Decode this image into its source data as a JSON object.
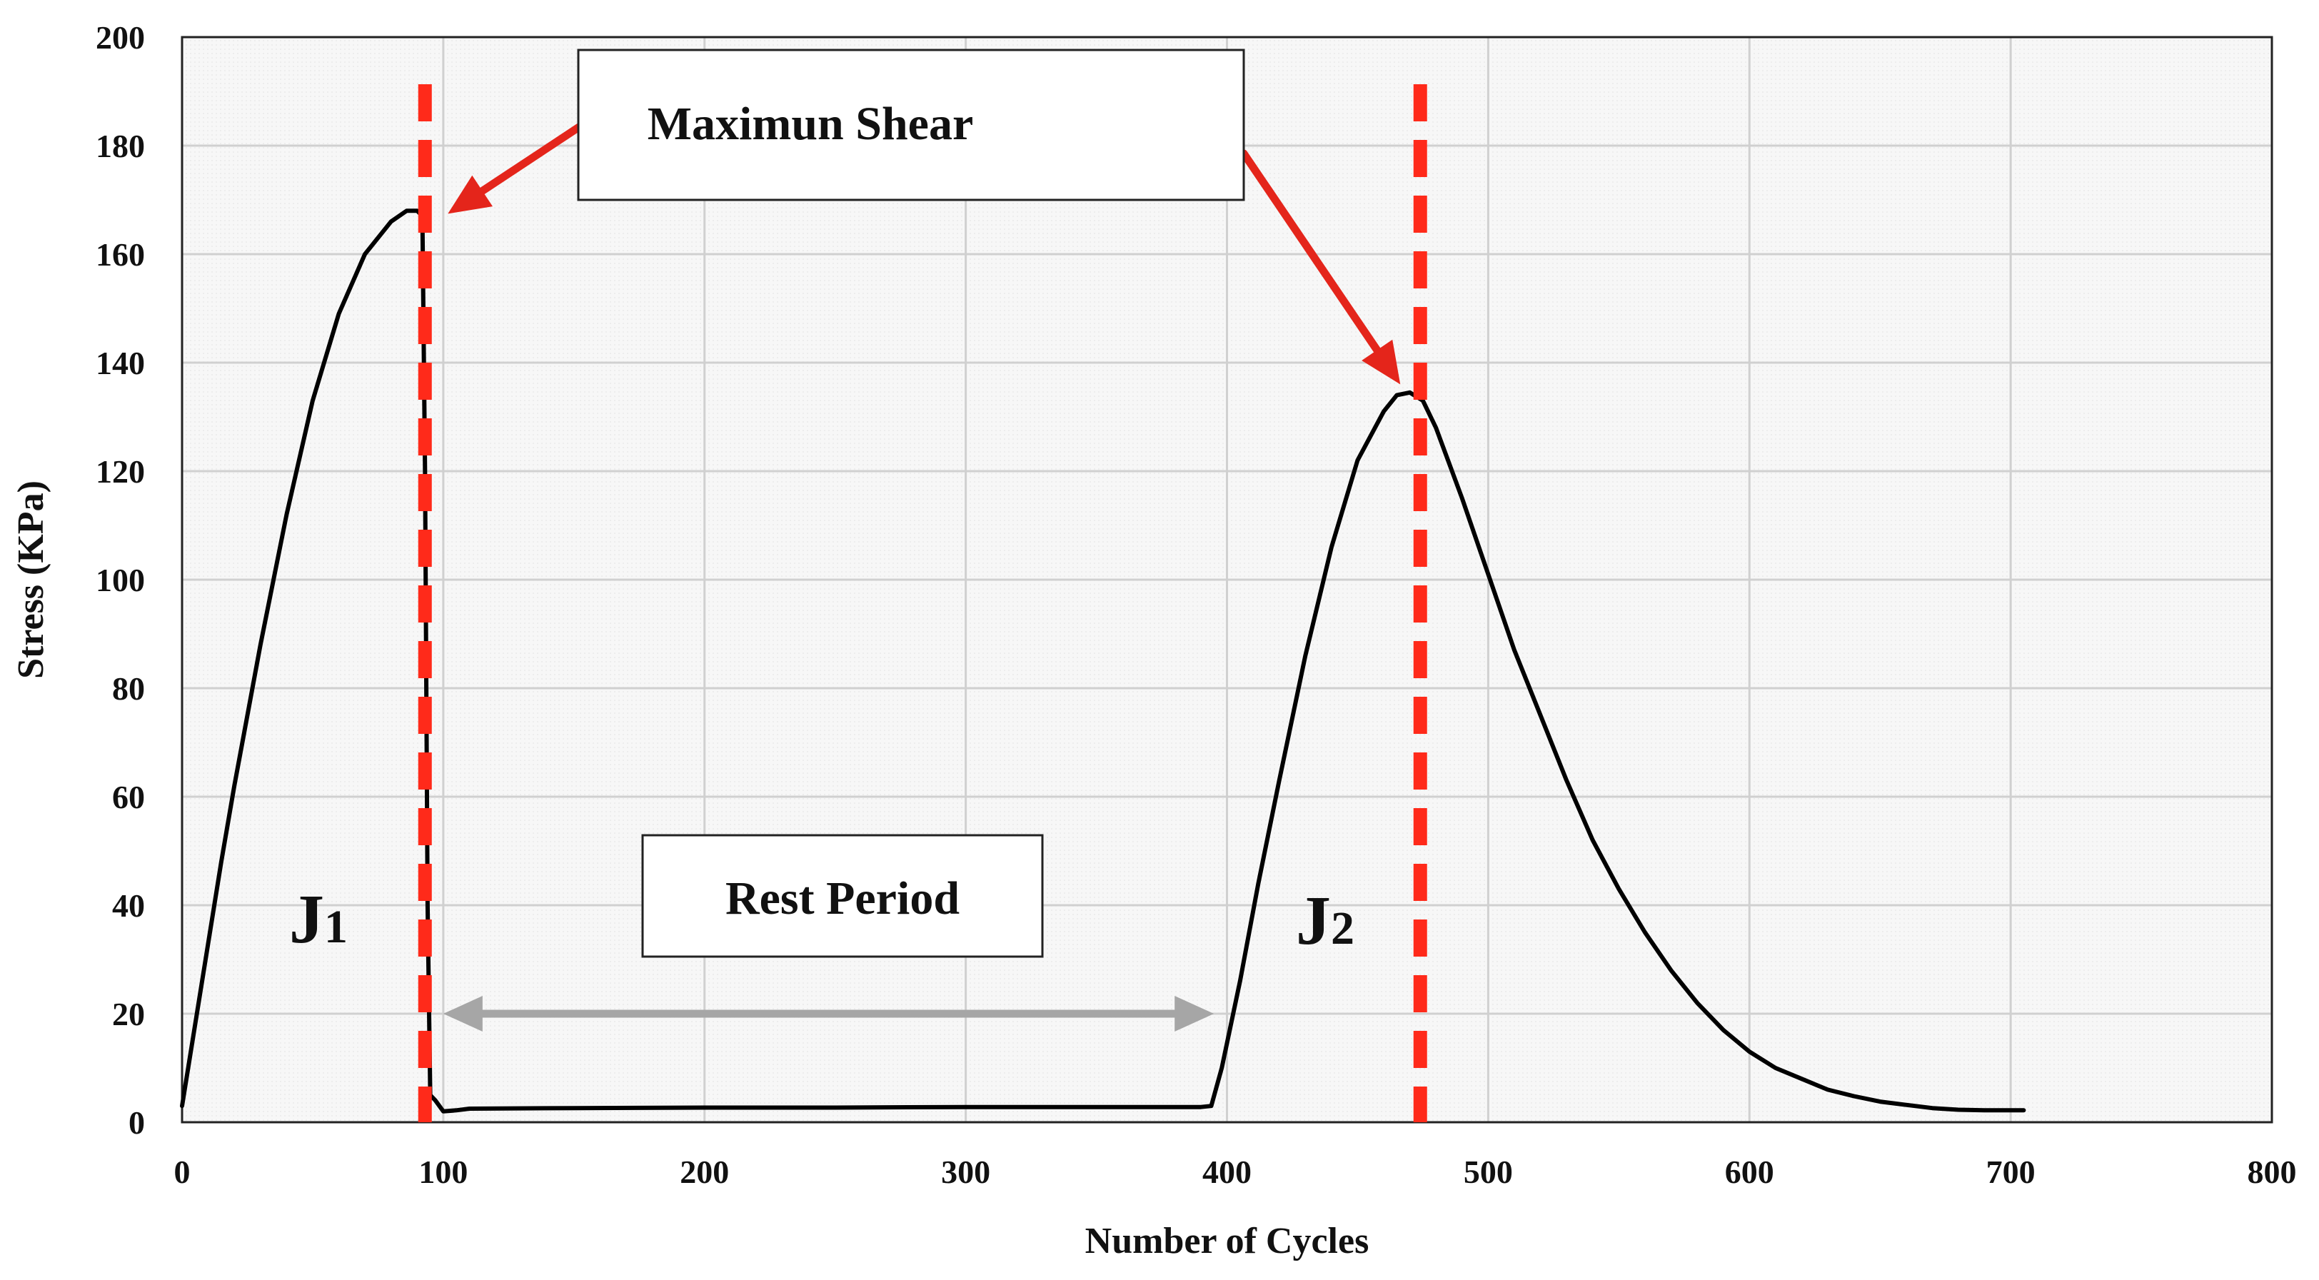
{
  "chart_data": {
    "type": "line",
    "title": "",
    "xlabel": "Number of Cycles",
    "ylabel": "Stress (KPa)",
    "xlim": [
      0,
      800
    ],
    "ylim": [
      0,
      200
    ],
    "xticks": [
      0,
      100,
      200,
      300,
      400,
      500,
      600,
      700,
      800
    ],
    "yticks": [
      0,
      20,
      40,
      60,
      80,
      100,
      120,
      140,
      160,
      180,
      200
    ],
    "grid": true,
    "series": [
      {
        "name": "Stress",
        "color": "#000000",
        "points": [
          [
            0,
            3
          ],
          [
            5,
            18
          ],
          [
            10,
            33
          ],
          [
            15,
            48
          ],
          [
            20,
            62
          ],
          [
            30,
            88
          ],
          [
            40,
            112
          ],
          [
            50,
            133
          ],
          [
            60,
            149
          ],
          [
            70,
            160
          ],
          [
            80,
            166
          ],
          [
            86,
            168
          ],
          [
            90,
            168
          ],
          [
            92,
            167
          ],
          [
            93,
            120
          ],
          [
            94,
            40
          ],
          [
            95,
            5
          ],
          [
            97,
            4
          ],
          [
            100,
            2
          ],
          [
            105,
            2.2
          ],
          [
            110,
            2.5
          ],
          [
            150,
            2.6
          ],
          [
            200,
            2.7
          ],
          [
            250,
            2.7
          ],
          [
            300,
            2.8
          ],
          [
            350,
            2.8
          ],
          [
            390,
            2.8
          ],
          [
            394,
            3
          ],
          [
            398,
            10
          ],
          [
            405,
            26
          ],
          [
            412,
            44
          ],
          [
            420,
            63
          ],
          [
            430,
            86
          ],
          [
            440,
            106
          ],
          [
            450,
            122
          ],
          [
            460,
            131
          ],
          [
            465,
            134
          ],
          [
            470,
            134.5
          ],
          [
            475,
            133
          ],
          [
            480,
            128
          ],
          [
            490,
            115
          ],
          [
            500,
            101
          ],
          [
            510,
            87
          ],
          [
            520,
            75
          ],
          [
            530,
            63
          ],
          [
            540,
            52
          ],
          [
            550,
            43
          ],
          [
            560,
            35
          ],
          [
            570,
            28
          ],
          [
            580,
            22
          ],
          [
            590,
            17
          ],
          [
            600,
            13
          ],
          [
            610,
            10
          ],
          [
            620,
            8
          ],
          [
            630,
            6
          ],
          [
            640,
            4.8
          ],
          [
            650,
            3.8
          ],
          [
            660,
            3.2
          ],
          [
            670,
            2.6
          ],
          [
            680,
            2.3
          ],
          [
            690,
            2.2
          ],
          [
            700,
            2.2
          ],
          [
            705,
            2.2
          ]
        ]
      }
    ],
    "reference_lines": [
      {
        "name": "J1 maximum shear",
        "x": 93,
        "color": "#ff2a1a",
        "style": "dashed"
      },
      {
        "name": "J2 maximum shear",
        "x": 474,
        "color": "#ff2a1a",
        "style": "dashed"
      }
    ],
    "annotations": {
      "max_shear_label": "Maximun Shear",
      "rest_period_label": "Rest Period",
      "rest_period_range": [
        100,
        395
      ],
      "j1_main": "J",
      "j1_sub": "1",
      "j2_main": "J",
      "j2_sub": "2",
      "arrow_color": "#e4251b",
      "rest_arrow_color": "#a6a6a6"
    }
  }
}
